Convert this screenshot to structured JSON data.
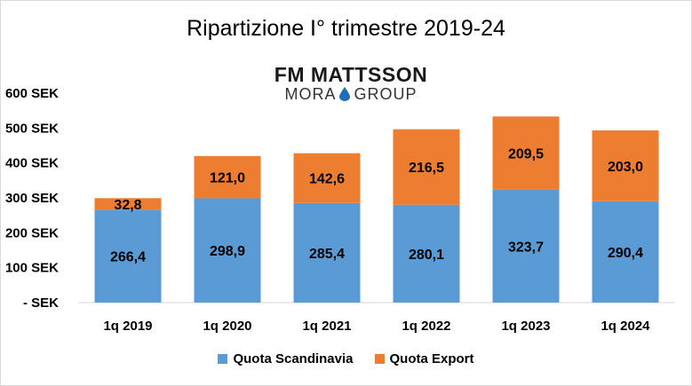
{
  "chart_data": {
    "type": "bar",
    "stacked": true,
    "title": "Ripartizione I° trimestre 2019-24",
    "categories": [
      "1q 2019",
      "1q 2020",
      "1q 2021",
      "1q 2022",
      "1q 2023",
      "1q 2024"
    ],
    "series": [
      {
        "name": "Quota Scandinavia",
        "values": [
          266.4,
          298.9,
          285.4,
          280.1,
          323.7,
          290.4
        ],
        "labels": [
          "266,4",
          "298,9",
          "285,4",
          "280,1",
          "323,7",
          "290,4"
        ],
        "color": "#5b9bd5"
      },
      {
        "name": "Quota Export",
        "values": [
          32.8,
          121.0,
          142.6,
          216.5,
          209.5,
          203.0
        ],
        "labels": [
          "32,8",
          "121,0",
          "142,6",
          "216,5",
          "209,5",
          "203,0"
        ],
        "color": "#ed7d31"
      }
    ],
    "ylim": [
      0,
      600
    ],
    "yticks": [
      {
        "value": 600,
        "label": "600 SEK"
      },
      {
        "value": 500,
        "label": "500 SEK"
      },
      {
        "value": 400,
        "label": "400 SEK"
      },
      {
        "value": 300,
        "label": "300 SEK"
      },
      {
        "value": 200,
        "label": "200 SEK"
      },
      {
        "value": 100,
        "label": "100 SEK"
      },
      {
        "value": 0,
        "label": "- SEK"
      }
    ],
    "grid": false,
    "legend_position": "bottom"
  },
  "logo": {
    "top": "FM MATTSSON",
    "bottom_left": "MORA",
    "bottom_right": "GROUP"
  },
  "colors": {
    "drop": "#1f6fb8"
  }
}
